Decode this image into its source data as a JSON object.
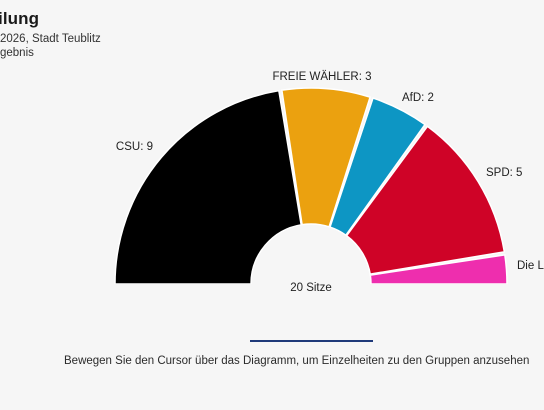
{
  "header": {
    "title": "ilung",
    "subtitle_line1": "2026, Stadt Teublitz",
    "subtitle_line2": "gebnis"
  },
  "chart_data": {
    "type": "parliament-donut",
    "total_label": "20 Sitze",
    "total_seats": 20,
    "series": [
      {
        "name": "CSU",
        "label": "CSU: 9",
        "value": 9,
        "color": "#000000"
      },
      {
        "name": "FREIE WÄHLER",
        "label": "FREIE WÄHLER: 3",
        "value": 3,
        "color": "#eba10f"
      },
      {
        "name": "AfD",
        "label": "AfD: 2",
        "value": 2,
        "color": "#0d96c4"
      },
      {
        "name": "SPD",
        "label": "SPD: 5",
        "value": 5,
        "color": "#cf0327"
      },
      {
        "name": "Die Linke",
        "label": "Die L",
        "value": 1,
        "color": "#ee2eae"
      }
    ]
  },
  "footer": {
    "hint": "Bewegen Sie den Cursor über das Diagramm, um Einzelheiten zu den Gruppen anzusehen"
  }
}
